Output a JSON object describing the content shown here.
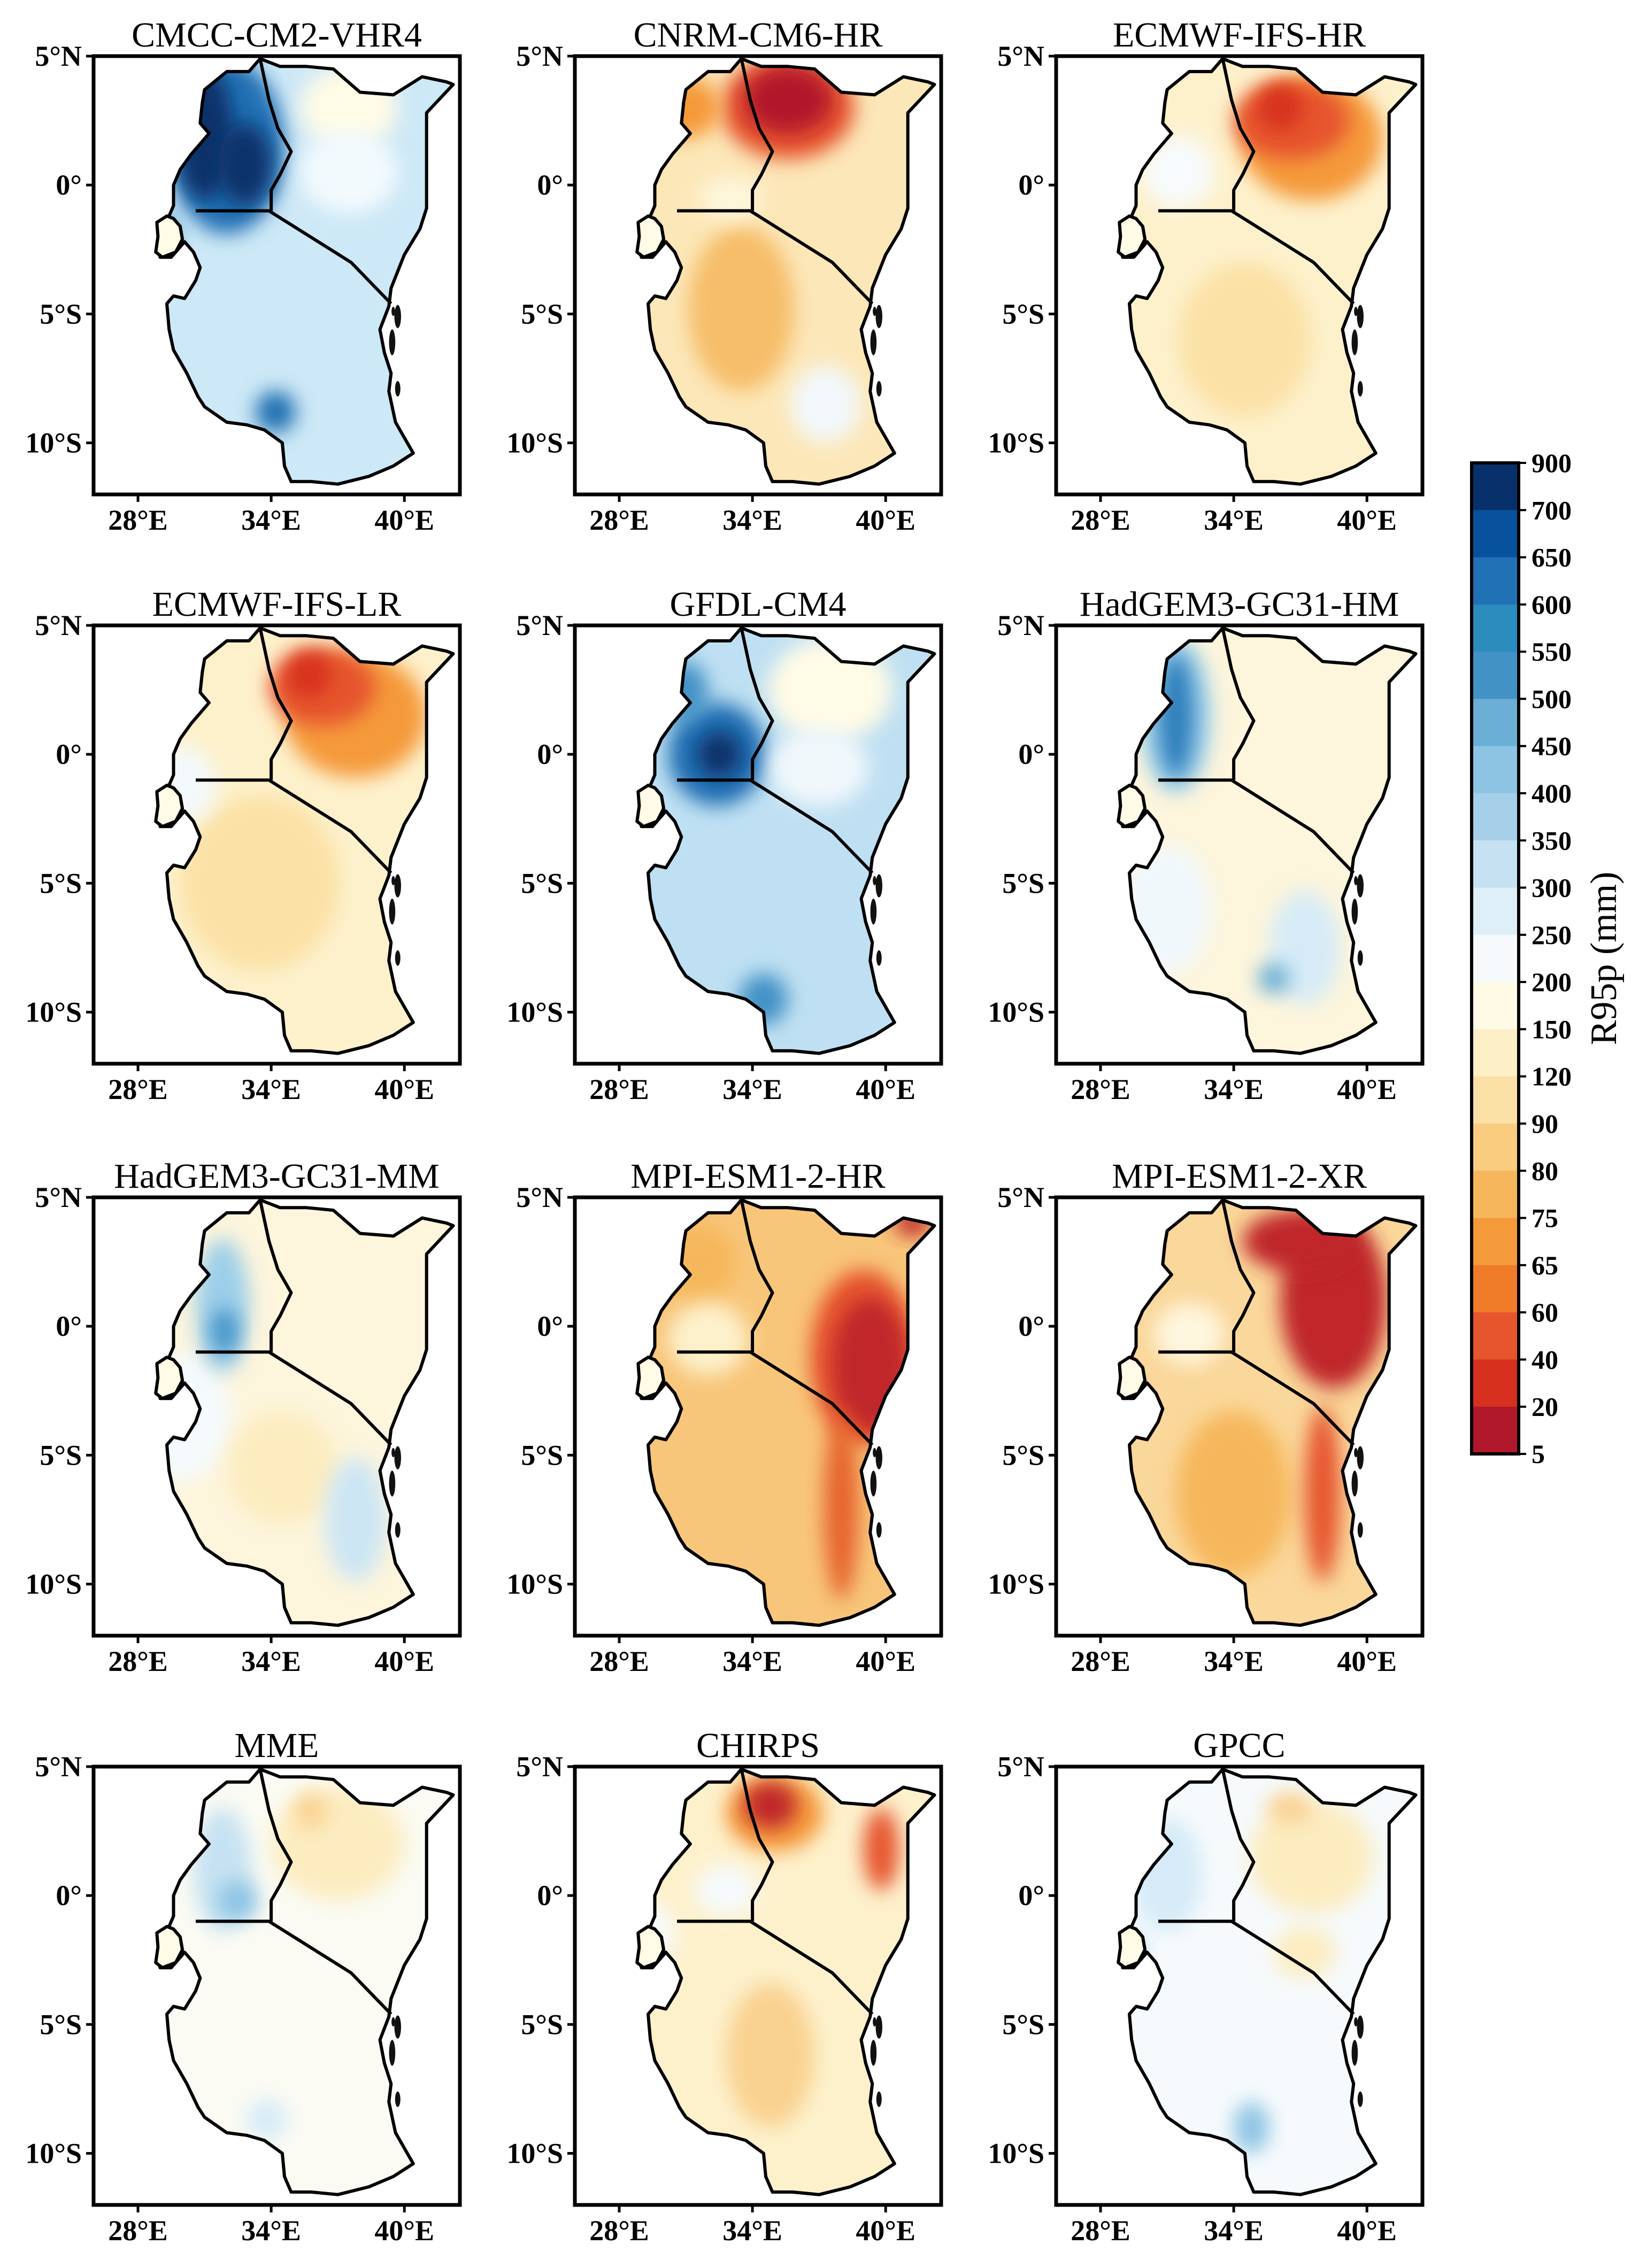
{
  "figure": {
    "panels": [
      {
        "title": "CMCC-CM2-VHR4",
        "base": "#cde8f6",
        "blobs": [
          {
            "name": "western-uganda-max",
            "lon": 31.0,
            "lat": 2.0,
            "rx": 1.3,
            "ry": 2.6,
            "color": "#08306b"
          },
          {
            "name": "uganda-east-max",
            "lon": 32.8,
            "lat": 0.8,
            "rx": 1.2,
            "ry": 1.6,
            "color": "#08306b"
          },
          {
            "name": "uganda-halo",
            "lon": 32.0,
            "lat": 1.5,
            "rx": 2.6,
            "ry": 3.4,
            "color": "#2171b5"
          },
          {
            "name": "lake-kivu-high",
            "lon": 28.9,
            "lat": -2.3,
            "rx": 0.8,
            "ry": 1.2,
            "color": "#2171b5"
          },
          {
            "name": "southern-highlands-high",
            "lon": 34.2,
            "lat": -8.8,
            "rx": 0.9,
            "ry": 0.8,
            "color": "#1f6eb0"
          },
          {
            "name": "kenya-north-low",
            "lon": 37.5,
            "lat": 3.0,
            "rx": 2.2,
            "ry": 1.6,
            "color": "#fffbe6"
          },
          {
            "name": "kenya-central",
            "lon": 37.5,
            "lat": 0.5,
            "rx": 2.2,
            "ry": 1.6,
            "color": "#f3fafe"
          }
        ]
      },
      {
        "title": "CNRM-CM6-HR",
        "base": "#fce7b8",
        "blobs": [
          {
            "name": "turkana-max",
            "lon": 35.6,
            "lat": 3.3,
            "rx": 2.0,
            "ry": 1.3,
            "color": "#b2182b"
          },
          {
            "name": "turkana-halo",
            "lon": 35.6,
            "lat": 3.0,
            "rx": 3.0,
            "ry": 2.0,
            "color": "#e6552d"
          },
          {
            "name": "nw-uganda-high",
            "lon": 30.8,
            "lat": 3.0,
            "rx": 1.8,
            "ry": 1.2,
            "color": "#f59a3b"
          },
          {
            "name": "central-tz-mid",
            "lon": 33.5,
            "lat": -4.8,
            "rx": 2.4,
            "ry": 3.2,
            "color": "#f6be6a"
          },
          {
            "name": "se-tz-light",
            "lon": 37.3,
            "lat": -8.5,
            "rx": 1.6,
            "ry": 1.5,
            "color": "#f2f8fb"
          },
          {
            "name": "lake-victoria-light",
            "lon": 33.0,
            "lat": -0.5,
            "rx": 1.4,
            "ry": 0.8,
            "color": "#fef6de"
          }
        ]
      },
      {
        "title": "ECMWF-IFS-HR",
        "base": "#fdf1cc",
        "blobs": [
          {
            "name": "ne-kenya-max",
            "lon": 36.6,
            "lat": 2.5,
            "rx": 2.6,
            "ry": 1.5,
            "color": "#e6552d"
          },
          {
            "name": "turkana-peak",
            "lon": 36.1,
            "lat": 3.0,
            "rx": 1.0,
            "ry": 0.9,
            "color": "#d7301f"
          },
          {
            "name": "ne-halo",
            "lon": 37.5,
            "lat": 1.8,
            "rx": 3.2,
            "ry": 2.4,
            "color": "#f59a3b"
          },
          {
            "name": "central-tz-mid",
            "lon": 34.5,
            "lat": -6.0,
            "rx": 3.0,
            "ry": 3.0,
            "color": "#fbe1a6"
          },
          {
            "name": "uganda-light",
            "lon": 31.5,
            "lat": 0.5,
            "rx": 1.6,
            "ry": 1.4,
            "color": "#f8fbfd"
          }
        ]
      },
      {
        "title": "ECMWF-IFS-LR",
        "base": "#fdf1cc",
        "blobs": [
          {
            "name": "ne-kenya-max",
            "lon": 36.3,
            "lat": 2.6,
            "rx": 2.4,
            "ry": 1.5,
            "color": "#e6552d"
          },
          {
            "name": "turkana-peak",
            "lon": 35.7,
            "lat": 3.1,
            "rx": 1.0,
            "ry": 0.9,
            "color": "#d7301f"
          },
          {
            "name": "ne-halo",
            "lon": 37.8,
            "lat": 1.5,
            "rx": 3.2,
            "ry": 2.4,
            "color": "#f59a3b"
          },
          {
            "name": "central-tz-mid",
            "lon": 33.5,
            "lat": -5.0,
            "rx": 3.6,
            "ry": 3.4,
            "color": "#fbe1a6"
          },
          {
            "name": "lake-region-light",
            "lon": 30.0,
            "lat": -1.2,
            "rx": 1.5,
            "ry": 1.5,
            "color": "#f3f9fc"
          }
        ]
      },
      {
        "title": "GFDL-CM4",
        "base": "#bfe0f2",
        "blobs": [
          {
            "name": "victoria-halo",
            "lon": 32.4,
            "lat": 0.0,
            "rx": 2.2,
            "ry": 2.0,
            "color": "#2171b5"
          },
          {
            "name": "victoria-max",
            "lon": 32.5,
            "lat": 0.0,
            "rx": 1.0,
            "ry": 0.9,
            "color": "#08306b"
          },
          {
            "name": "nw-uganda-high",
            "lon": 31.0,
            "lat": 2.4,
            "rx": 1.0,
            "ry": 1.2,
            "color": "#4292c6"
          },
          {
            "name": "southern-high",
            "lon": 34.5,
            "lat": -9.5,
            "rx": 1.1,
            "ry": 1.0,
            "color": "#4292c6"
          },
          {
            "name": "kenya-north-low",
            "lon": 37.5,
            "lat": 2.5,
            "rx": 2.8,
            "ry": 2.0,
            "color": "#fffbe6"
          },
          {
            "name": "kenya-central-light",
            "lon": 37.0,
            "lat": -0.5,
            "rx": 2.2,
            "ry": 1.5,
            "color": "#f1f8fc"
          }
        ]
      },
      {
        "title": "HadGEM3-GC31-HM",
        "base": "#fdf5dc",
        "blobs": [
          {
            "name": "uganda-west-max",
            "lon": 31.4,
            "lat": 1.5,
            "rx": 0.8,
            "ry": 2.4,
            "color": "#2d7fbc"
          },
          {
            "name": "uganda-halo",
            "lon": 31.4,
            "lat": 1.5,
            "rx": 1.6,
            "ry": 3.0,
            "color": "#9ccfea"
          },
          {
            "name": "coast-light-blue",
            "lon": 37.2,
            "lat": -7.5,
            "rx": 1.6,
            "ry": 2.2,
            "color": "#d6ebf7"
          },
          {
            "name": "southern-high",
            "lon": 35.8,
            "lat": -8.7,
            "rx": 0.7,
            "ry": 0.6,
            "color": "#6baed6"
          },
          {
            "name": "west-tz-light",
            "lon": 31.0,
            "lat": -6.0,
            "rx": 2.0,
            "ry": 2.5,
            "color": "#f1f8fc"
          }
        ]
      },
      {
        "title": "HadGEM3-GC31-MM",
        "base": "#fdf5dc",
        "blobs": [
          {
            "name": "uganda-high",
            "lon": 31.8,
            "lat": 0.8,
            "rx": 1.2,
            "ry": 2.6,
            "color": "#9ccfea"
          },
          {
            "name": "uganda-max",
            "lon": 31.9,
            "lat": -0.2,
            "rx": 0.6,
            "ry": 0.9,
            "color": "#4292c6"
          },
          {
            "name": "coast-light-blue",
            "lon": 37.8,
            "lat": -7.5,
            "rx": 1.4,
            "ry": 2.4,
            "color": "#cde6f4"
          },
          {
            "name": "west-tz-light",
            "lon": 30.0,
            "lat": -3.5,
            "rx": 2.2,
            "ry": 2.5,
            "color": "#f5fafd"
          },
          {
            "name": "central-tz-mid",
            "lon": 34.5,
            "lat": -5.5,
            "rx": 2.5,
            "ry": 2.2,
            "color": "#fcecc0"
          }
        ]
      },
      {
        "title": "MPI-ESM1-2-HR",
        "base": "#f8c67a",
        "blobs": [
          {
            "name": "east-kenya-max",
            "lon": 39.3,
            "lat": -1.5,
            "rx": 1.7,
            "ry": 2.6,
            "color": "#c0282a"
          },
          {
            "name": "east-kenya-halo",
            "lon": 39.0,
            "lat": -1.2,
            "rx": 2.4,
            "ry": 3.4,
            "color": "#e6552d"
          },
          {
            "name": "se-tz-band",
            "lon": 38.0,
            "lat": -7.0,
            "rx": 0.8,
            "ry": 3.6,
            "color": "#e6652d"
          },
          {
            "name": "ne-corner",
            "lon": 41.2,
            "lat": 4.0,
            "rx": 0.8,
            "ry": 0.5,
            "color": "#c0282a"
          },
          {
            "name": "victoria-light",
            "lon": 32.0,
            "lat": -0.5,
            "rx": 1.8,
            "ry": 1.4,
            "color": "#fdf1cc"
          },
          {
            "name": "north-uganda-mid",
            "lon": 31.5,
            "lat": 2.5,
            "rx": 1.8,
            "ry": 1.5,
            "color": "#f6b75c"
          }
        ]
      },
      {
        "title": "MPI-ESM1-2-XR",
        "base": "#fad79a",
        "blobs": [
          {
            "name": "kenya-max",
            "lon": 38.5,
            "lat": 1.0,
            "rx": 2.4,
            "ry": 3.4,
            "color": "#c0282a"
          },
          {
            "name": "north-max",
            "lon": 37.0,
            "lat": 3.3,
            "rx": 2.6,
            "ry": 1.2,
            "color": "#c0282a"
          },
          {
            "name": "coast-band",
            "lon": 38.0,
            "lat": -6.5,
            "rx": 0.8,
            "ry": 3.4,
            "color": "#e6552d"
          },
          {
            "name": "central-tz-mid",
            "lon": 34.0,
            "lat": -6.5,
            "rx": 2.6,
            "ry": 3.2,
            "color": "#f6b75c"
          },
          {
            "name": "victoria-light",
            "lon": 32.0,
            "lat": -0.3,
            "rx": 1.6,
            "ry": 1.2,
            "color": "#fef6de"
          }
        ]
      },
      {
        "title": "MME",
        "base": "#fbfbf3",
        "blobs": [
          {
            "name": "uganda-light-blue",
            "lon": 31.8,
            "lat": 1.0,
            "rx": 1.3,
            "ry": 2.4,
            "color": "#c6e2f2"
          },
          {
            "name": "victoria-blue",
            "lon": 32.5,
            "lat": -0.2,
            "rx": 0.9,
            "ry": 0.8,
            "color": "#8dc4e4"
          },
          {
            "name": "north-kenya-mid",
            "lon": 37.0,
            "lat": 2.0,
            "rx": 3.0,
            "ry": 2.2,
            "color": "#fcecc0"
          },
          {
            "name": "turkana-peak",
            "lon": 35.8,
            "lat": 3.3,
            "rx": 0.7,
            "ry": 0.7,
            "color": "#f9d291"
          },
          {
            "name": "southern-light-blue",
            "lon": 33.8,
            "lat": -8.7,
            "rx": 0.9,
            "ry": 0.8,
            "color": "#d6ebf7"
          }
        ]
      },
      {
        "title": "CHIRPS",
        "base": "#fdf1cc",
        "blobs": [
          {
            "name": "turkana-max",
            "lon": 34.8,
            "lat": 3.5,
            "rx": 1.2,
            "ry": 0.9,
            "color": "#c0282a"
          },
          {
            "name": "turkana-halo",
            "lon": 35.0,
            "lat": 3.2,
            "rx": 2.2,
            "ry": 1.5,
            "color": "#f59a3b"
          },
          {
            "name": "ne-kenya-high",
            "lon": 39.8,
            "lat": 1.8,
            "rx": 0.8,
            "ry": 1.6,
            "color": "#e6552d"
          },
          {
            "name": "central-tz-mid",
            "lon": 34.8,
            "lat": -6.2,
            "rx": 2.0,
            "ry": 2.8,
            "color": "#f9d291"
          },
          {
            "name": "victoria-light",
            "lon": 32.8,
            "lat": 0.2,
            "rx": 1.4,
            "ry": 1.0,
            "color": "#f6fafc"
          },
          {
            "name": "west-light",
            "lon": 29.5,
            "lat": -1.5,
            "rx": 1.0,
            "ry": 1.2,
            "color": "#f8fbfd"
          }
        ]
      },
      {
        "title": "GPCC",
        "base": "#f6fafc",
        "blobs": [
          {
            "name": "uganda-light-blue",
            "lon": 31.0,
            "lat": 0.8,
            "rx": 1.6,
            "ry": 2.2,
            "color": "#d6ebf7"
          },
          {
            "name": "kivu-blue",
            "lon": 29.2,
            "lat": -2.3,
            "rx": 0.7,
            "ry": 0.9,
            "color": "#a6d0ea"
          },
          {
            "name": "kenya-mid",
            "lon": 37.5,
            "lat": 1.5,
            "rx": 2.8,
            "ry": 2.2,
            "color": "#fcecc0"
          },
          {
            "name": "north-peak",
            "lon": 36.5,
            "lat": 3.4,
            "rx": 1.0,
            "ry": 0.6,
            "color": "#f9d291"
          },
          {
            "name": "southern-blue",
            "lon": 34.8,
            "lat": -9.0,
            "rx": 0.8,
            "ry": 1.0,
            "color": "#8dc4e4"
          },
          {
            "name": "se-kenya-mid",
            "lon": 37.2,
            "lat": -2.2,
            "rx": 1.4,
            "ry": 1.0,
            "color": "#fcecc0"
          }
        ]
      }
    ],
    "lat_ticks": [
      "5°N",
      "0°",
      "5°S",
      "10°S"
    ],
    "lat_tick_values": [
      5,
      0,
      -5,
      -10
    ],
    "lon_ticks": [
      "28°E",
      "34°E",
      "40°E"
    ],
    "lon_tick_values": [
      28,
      34,
      40
    ],
    "extent": {
      "lon_min": 26,
      "lon_max": 42.5,
      "lat_min": -12,
      "lat_max": 5
    },
    "colorbar": {
      "title": "R95p (mm)",
      "labels": [
        "900",
        "700",
        "650",
        "600",
        "550",
        "500",
        "450",
        "400",
        "350",
        "300",
        "250",
        "200",
        "150",
        "120",
        "90",
        "80",
        "75",
        "65",
        "60",
        "40",
        "20",
        "5"
      ],
      "colors": [
        "#08306b",
        "#08519c",
        "#2171b5",
        "#2b8cbe",
        "#4292c6",
        "#6baed6",
        "#8dc4e4",
        "#a6d0ea",
        "#c6e2f2",
        "#deeff8",
        "#f6fafc",
        "#fefae6",
        "#fdefc6",
        "#fbe1a6",
        "#f9cc80",
        "#f6b75c",
        "#f59a3b",
        "#f07c2a",
        "#e6552d",
        "#d7301f",
        "#b2182b"
      ]
    }
  }
}
